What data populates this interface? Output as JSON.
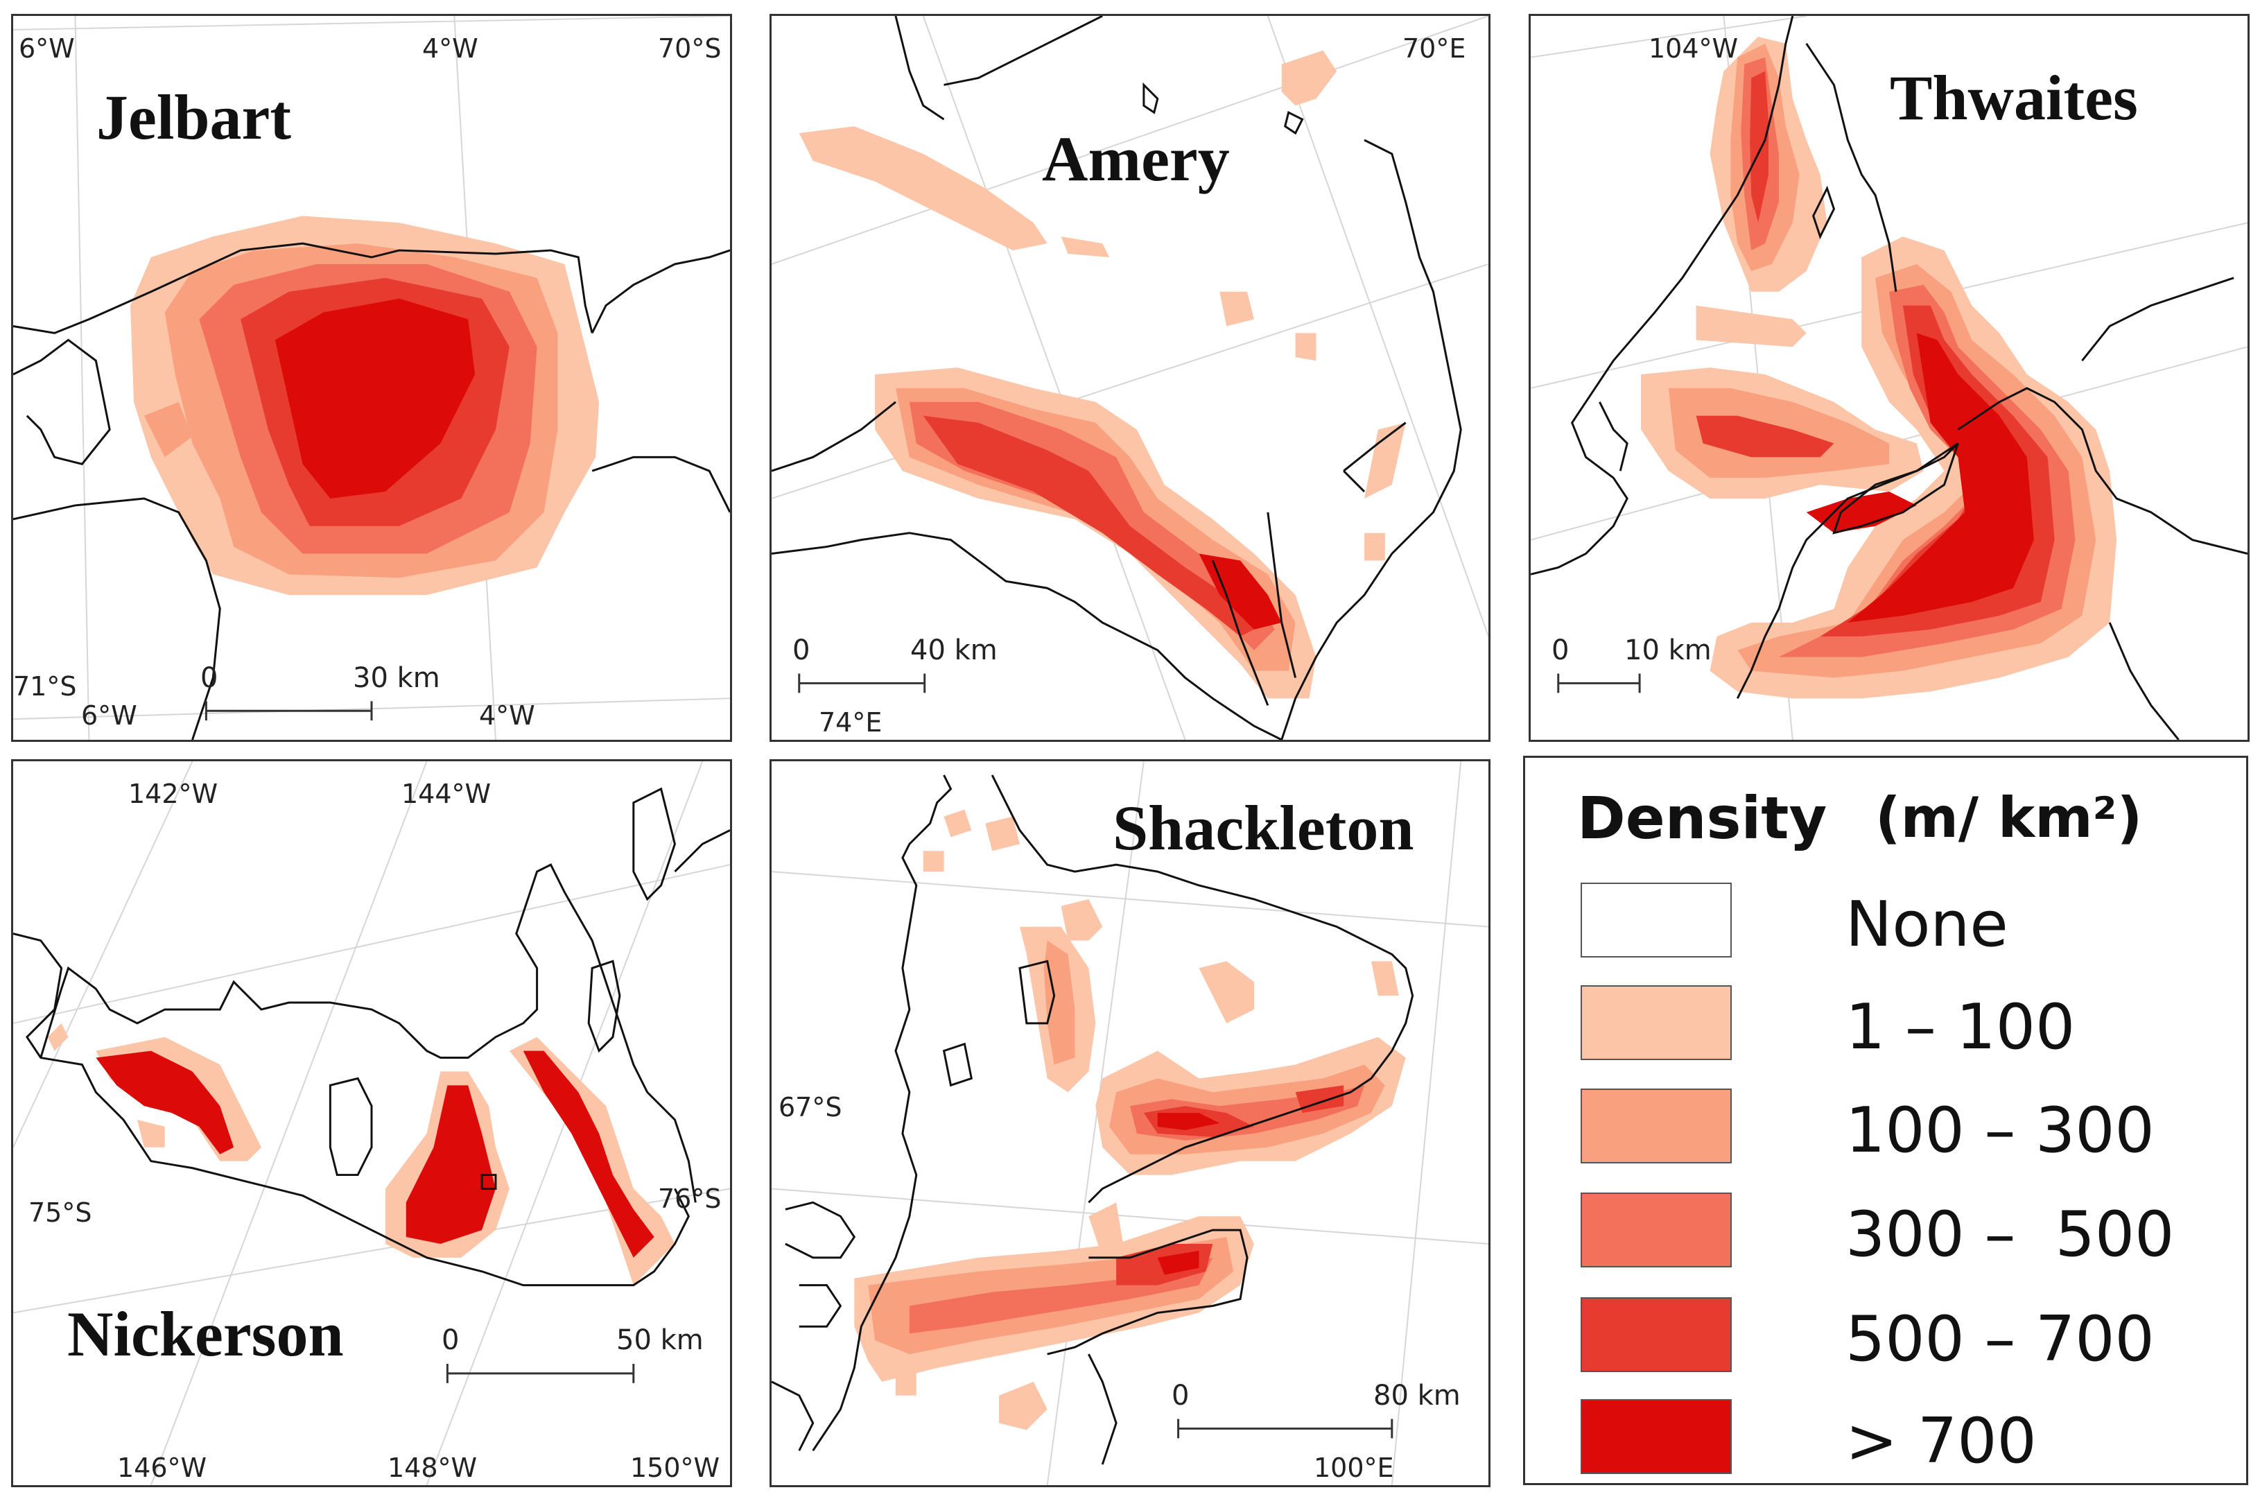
{
  "panels": {
    "jelbart": {
      "title": "Jelbart",
      "labels": {
        "tl": "6°W",
        "tc": "4°W",
        "tr": "70°S",
        "bl_lat": "71°S",
        "bl_lon": "6°W",
        "br_lon": "4°W"
      },
      "scale": {
        "zero": "0",
        "distance": "30 km"
      }
    },
    "amery": {
      "title": "Amery",
      "labels": {
        "tr": "70°E",
        "bl": "74°E"
      },
      "scale": {
        "zero": "0",
        "distance": "40 km"
      }
    },
    "thwaites": {
      "title": "Thwaites",
      "labels": {
        "tl": "104°W"
      },
      "scale": {
        "zero": "0",
        "distance": "10 km"
      }
    },
    "nickerson": {
      "title": "Nickerson",
      "labels": {
        "t1": "142°W",
        "t2": "144°W",
        "l_lat": "75°S",
        "r_lat": "76°S",
        "b1": "146°W",
        "b2": "148°W",
        "b3": "150°W"
      },
      "scale": {
        "zero": "0",
        "distance": "50 km"
      }
    },
    "shackleton": {
      "title": "Shackleton",
      "labels": {
        "l_lat": "67°S",
        "b": "100°E"
      },
      "scale": {
        "zero": "0",
        "distance": "80 km"
      }
    }
  },
  "legend": {
    "title": "Density",
    "unit": "(m/ km²)",
    "classes": [
      {
        "label": "None",
        "color": "#ffffff"
      },
      {
        "label": "1 – 100",
        "color": "#fcc5a8"
      },
      {
        "label": "100 – 300",
        "color": "#f9a07e"
      },
      {
        "label": "300 –  500",
        "color": "#f3705a"
      },
      {
        "label": "500 – 700",
        "color": "#e83b30"
      },
      {
        "label": "> 700",
        "color": "#dd0a0a"
      }
    ]
  }
}
